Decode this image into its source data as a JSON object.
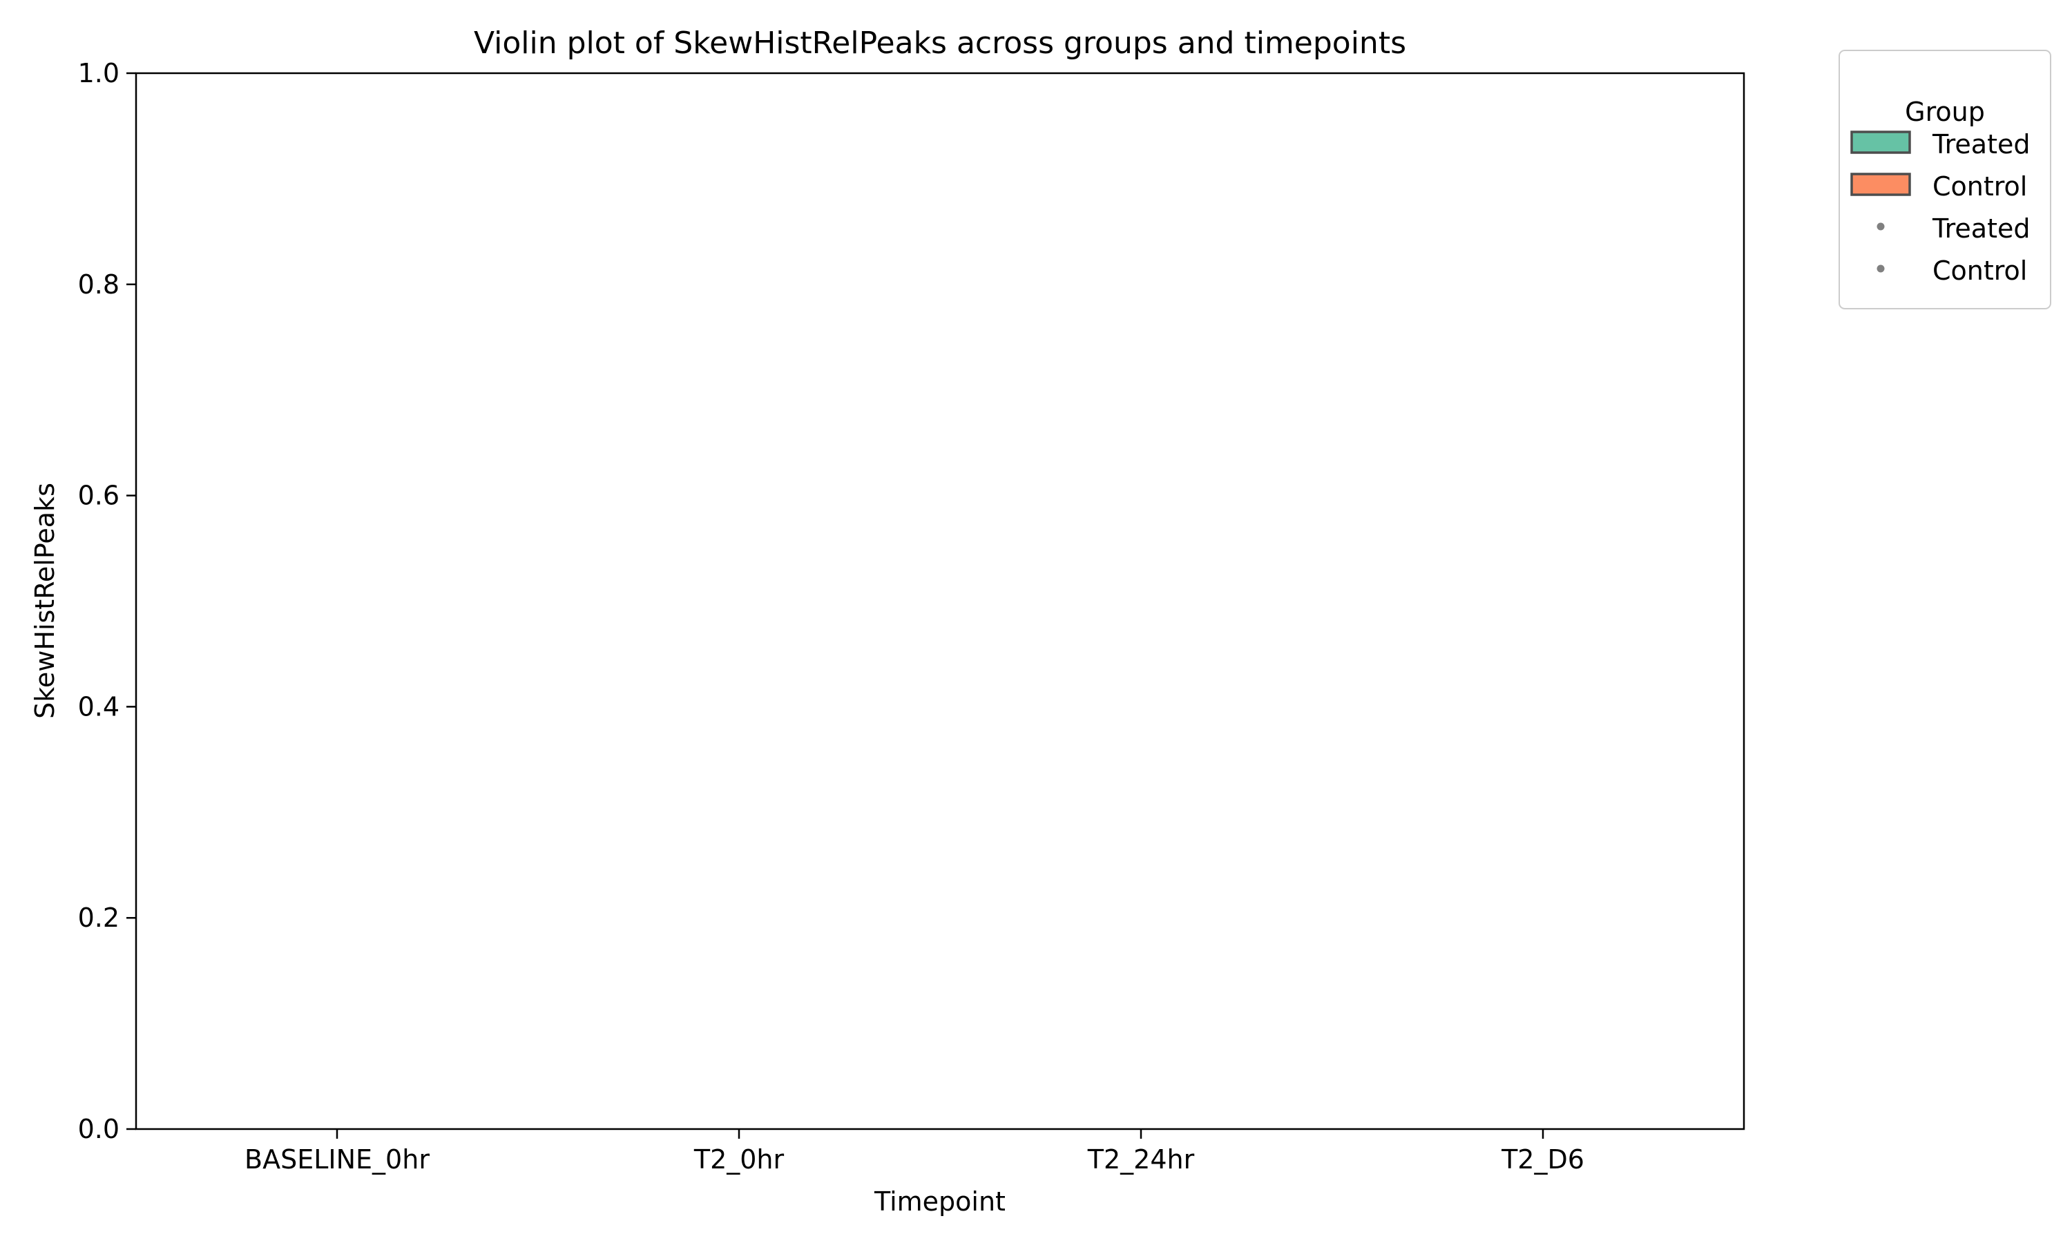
{
  "chart_data": {
    "type": "violin",
    "title": "Violin plot of SkewHistRelPeaks across groups and timepoints",
    "xlabel": "Timepoint",
    "ylabel": "SkewHistRelPeaks",
    "categories": [
      "BASELINE_0hr",
      "T2_0hr",
      "T2_24hr",
      "T2_D6"
    ],
    "ylim": [
      0,
      1
    ],
    "yticks": [
      0.0,
      0.2,
      0.4,
      0.6,
      0.8,
      1.0
    ],
    "ytick_labels": [
      "0.0",
      "0.2",
      "0.4",
      "0.6",
      "0.8",
      "1.0"
    ],
    "series": [
      {
        "name": "Treated",
        "color": "#66c2a5",
        "values": []
      },
      {
        "name": "Control",
        "color": "#fc8d62",
        "values": []
      }
    ],
    "grid": false,
    "legend": {
      "title": "Group",
      "placement": "outside-top-right",
      "entries": [
        {
          "label": "Treated",
          "marker": "patch",
          "color": "#66c2a5"
        },
        {
          "label": "Control",
          "marker": "patch",
          "color": "#fc8d62"
        },
        {
          "label": "Treated",
          "marker": "dot",
          "color": "#808080"
        },
        {
          "label": "Control",
          "marker": "dot",
          "color": "#808080"
        }
      ]
    }
  }
}
